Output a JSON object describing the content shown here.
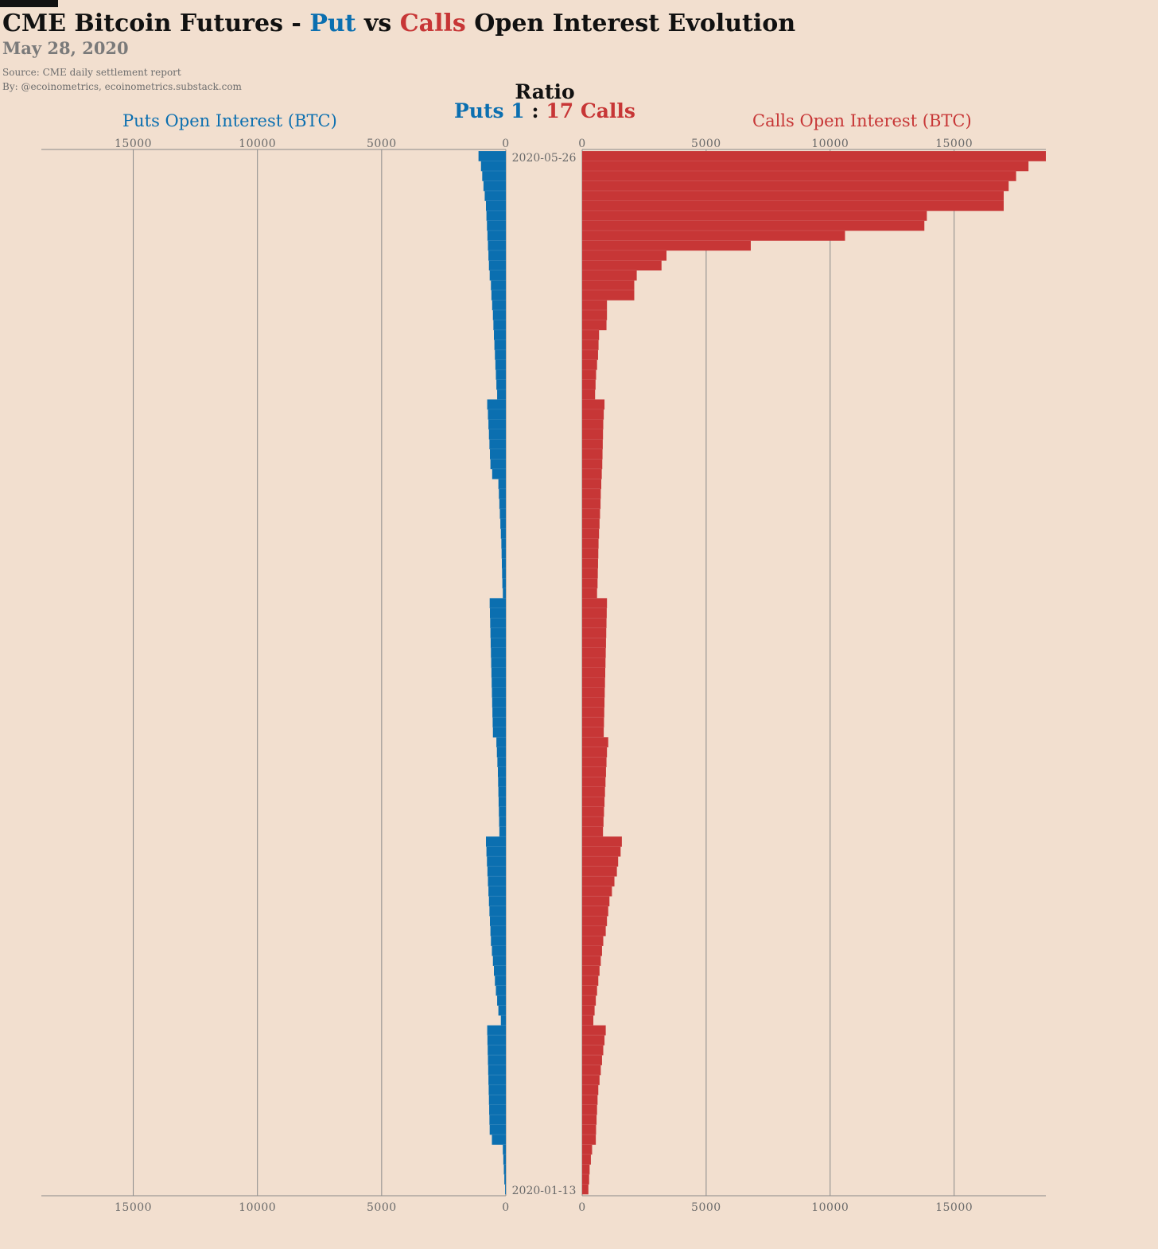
{
  "header": {
    "title_part1": "CME Bitcoin Futures - ",
    "title_put": "Put",
    "title_mid": " vs ",
    "title_calls": "Calls",
    "title_part2": " Open Interest Evolution",
    "subtitle": "May 28, 2020",
    "source": "Source: CME daily settlement report",
    "byline": "By: @ecoinometrics, ecoinometrics.substack.com"
  },
  "ratio": {
    "label": "Ratio",
    "puts_text": "Puts 1",
    "separator": ":",
    "calls_text": "17 Calls"
  },
  "colors": {
    "background": "#f2dfcf",
    "puts": "#0b6fb0",
    "calls": "#c73636",
    "axis": "#8a8a8a",
    "tick_text": "#6a6a6a"
  },
  "chart_data": {
    "type": "bar",
    "orientation": "horizontal-mirrored",
    "x_first_label": "2020-05-26",
    "x_last_label": "2020-01-13",
    "xlim": [
      0,
      18700
    ],
    "ticks": [
      0,
      5000,
      10000,
      15000
    ],
    "tick_labels": [
      "0",
      "5000",
      "10000",
      "15000"
    ],
    "grid": true,
    "series": [
      {
        "name": "Puts Open Interest (BTC)",
        "side": "left",
        "values": [
          1100,
          1000,
          950,
          900,
          850,
          800,
          780,
          760,
          740,
          720,
          700,
          680,
          650,
          600,
          580,
          550,
          520,
          500,
          480,
          460,
          440,
          420,
          400,
          380,
          350,
          750,
          720,
          700,
          680,
          660,
          640,
          620,
          550,
          300,
          280,
          260,
          240,
          220,
          200,
          180,
          170,
          160,
          150,
          140,
          120,
          650,
          640,
          630,
          620,
          610,
          600,
          590,
          580,
          570,
          560,
          550,
          540,
          530,
          520,
          380,
          360,
          340,
          320,
          310,
          300,
          290,
          280,
          270,
          260,
          800,
          780,
          760,
          740,
          720,
          700,
          680,
          660,
          640,
          620,
          600,
          560,
          520,
          480,
          440,
          400,
          350,
          300,
          200,
          750,
          740,
          730,
          720,
          710,
          700,
          690,
          680,
          670,
          660,
          650,
          560,
          120,
          100,
          80,
          60,
          30
        ]
      },
      {
        "name": "Calls Open Interest (BTC)",
        "side": "right",
        "values": [
          18700,
          18000,
          17500,
          17200,
          17000,
          17000,
          13900,
          13800,
          10600,
          6800,
          3400,
          3200,
          2200,
          2100,
          2100,
          1000,
          1000,
          980,
          680,
          660,
          640,
          600,
          560,
          540,
          520,
          900,
          870,
          850,
          840,
          830,
          820,
          810,
          790,
          770,
          750,
          740,
          720,
          700,
          680,
          660,
          650,
          640,
          630,
          620,
          600,
          1000,
          990,
          980,
          970,
          960,
          950,
          940,
          930,
          920,
          910,
          900,
          890,
          880,
          870,
          1050,
          1000,
          980,
          960,
          940,
          920,
          900,
          880,
          860,
          840,
          1600,
          1550,
          1450,
          1400,
          1300,
          1200,
          1100,
          1050,
          1000,
          950,
          850,
          800,
          750,
          700,
          650,
          600,
          550,
          500,
          450,
          950,
          900,
          850,
          800,
          750,
          700,
          650,
          620,
          600,
          580,
          560,
          550,
          400,
          350,
          300,
          280,
          250
        ]
      }
    ]
  }
}
